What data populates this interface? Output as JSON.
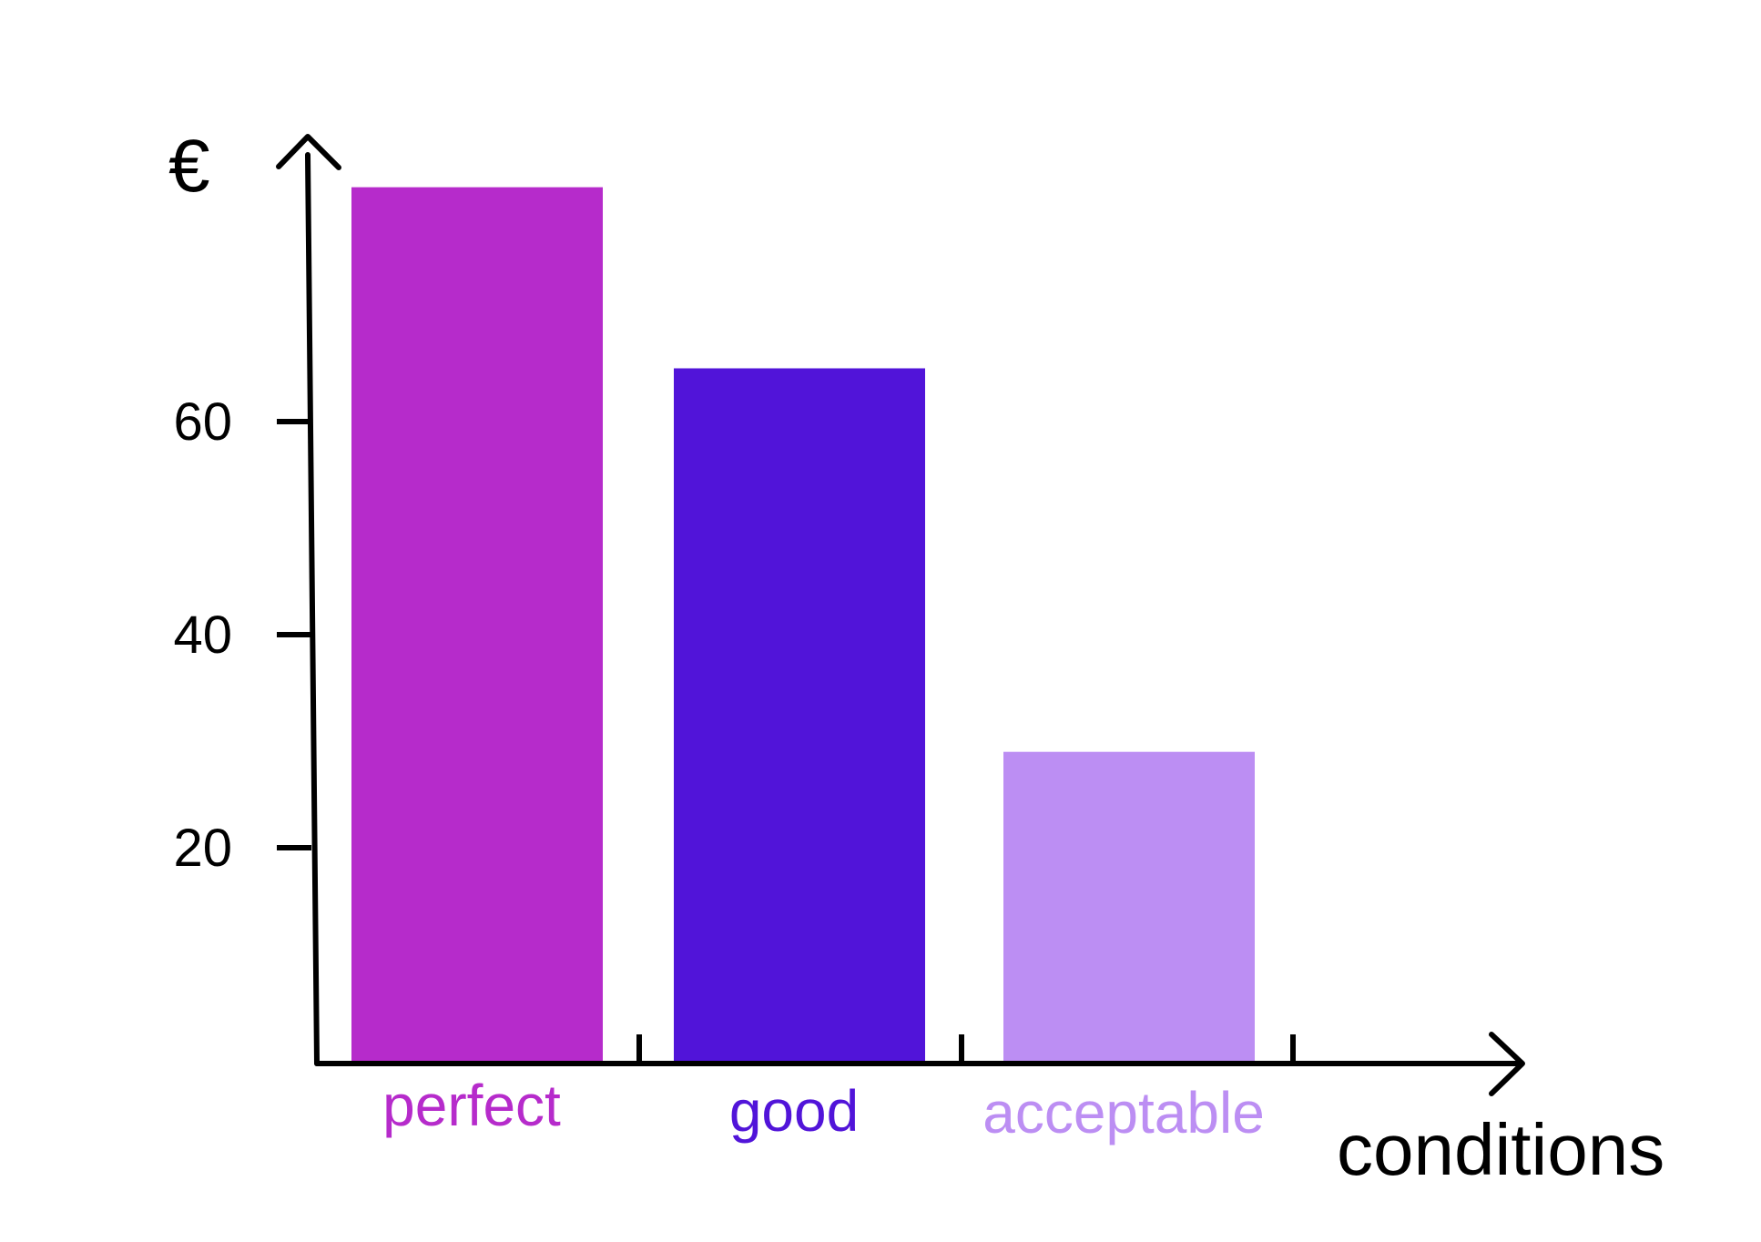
{
  "chart_data": {
    "type": "bar",
    "categories": [
      "perfect",
      "good",
      "acceptable"
    ],
    "values": [
      82,
      65,
      29
    ],
    "colors": [
      "#b62bcb",
      "#5114d9",
      "#bc8ef3"
    ],
    "ylabel": "€",
    "xlabel": "conditions",
    "yticks": [
      20,
      40,
      60
    ],
    "ylim": [
      0,
      85
    ],
    "grid": false,
    "legend": "none"
  }
}
